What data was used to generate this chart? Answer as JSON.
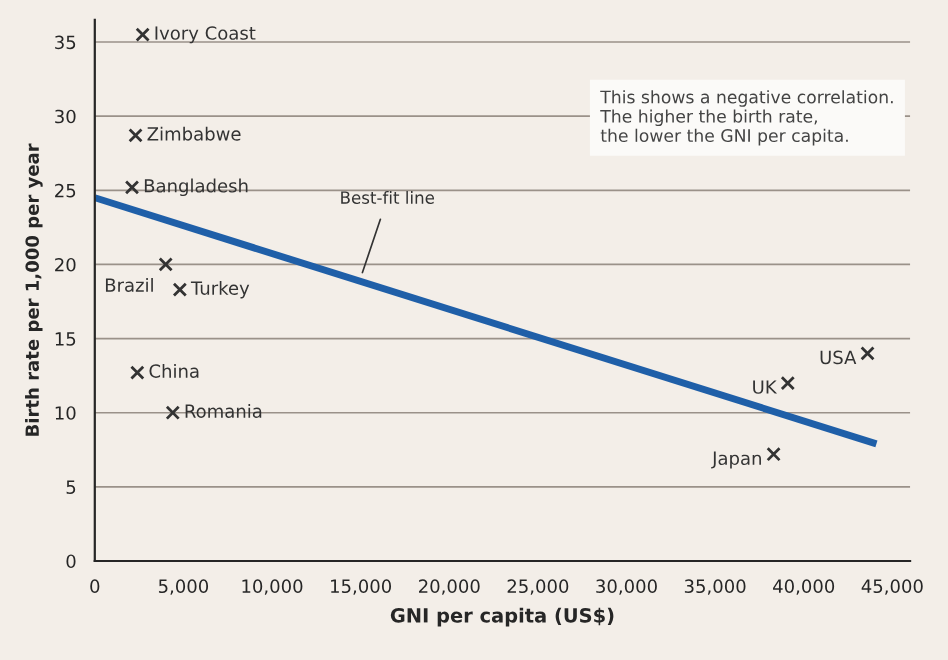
{
  "chart_data": {
    "type": "scatter",
    "xlabel": "GNI per capita (US$)",
    "ylabel": "Birth rate per 1,000 per year",
    "series": [
      {
        "color": "#333333",
        "marker": "cross",
        "x": [
          2700,
          2300,
          2100,
          4000,
          4800,
          2400,
          4400,
          43600,
          39100,
          38300
        ],
        "values": [
          35.5,
          28.7,
          25.2,
          20,
          18.3,
          12.7,
          10,
          14,
          12,
          7.2
        ]
      },
      {
        "type": "line",
        "color": "#1f5fa8",
        "line_style": "solid",
        "x": [
          0,
          44100
        ],
        "values": [
          24.5,
          7.9
        ]
      }
    ],
    "annotations": [
      {
        "text": "Ivory Coast",
        "x": 2700,
        "y": 35.5
      },
      {
        "text": "Zimbabwe",
        "x": 2300,
        "y": 28.7
      },
      {
        "text": "Bangladesh",
        "x": 2100,
        "y": 25.2
      },
      {
        "text": "Brazil",
        "x": 4000,
        "y": 20
      },
      {
        "text": "Turkey",
        "x": 4800,
        "y": 18.3
      },
      {
        "text": "China",
        "x": 2400,
        "y": 12.7
      },
      {
        "text": "Romania",
        "x": 4400,
        "y": 10
      },
      {
        "text": "USA",
        "x": 43600,
        "y": 14
      },
      {
        "text": "UK",
        "x": 39100,
        "y": 12
      },
      {
        "text": "Japan",
        "x": 38300,
        "y": 7.2
      },
      {
        "text": "Best-fit line",
        "x": 15000,
        "y": 19.1
      },
      "This shows a negative correlation.\nThe higher the birth rate,\nthe lower the GNI per capita."
    ],
    "xlim": [
      0,
      46000
    ],
    "ylim": [
      0,
      36.5
    ],
    "xticks": [
      {
        "value": 0,
        "label": "0"
      },
      {
        "value": 5000,
        "label": "5,000"
      },
      {
        "value": 10000,
        "label": "10,000"
      },
      {
        "value": 15000,
        "label": "15,000"
      },
      {
        "value": 20000,
        "label": "20,000"
      },
      {
        "value": 25000,
        "label": "25,000"
      },
      {
        "value": 30000,
        "label": "30,000"
      },
      {
        "value": 35000,
        "label": "35,000"
      },
      {
        "value": 40000,
        "label": "40,000"
      },
      {
        "value": 45000,
        "label": "45,000"
      }
    ],
    "yticks": [
      0,
      5,
      10,
      15,
      20,
      25,
      30,
      35
    ],
    "grid": "y",
    "legend": false
  }
}
